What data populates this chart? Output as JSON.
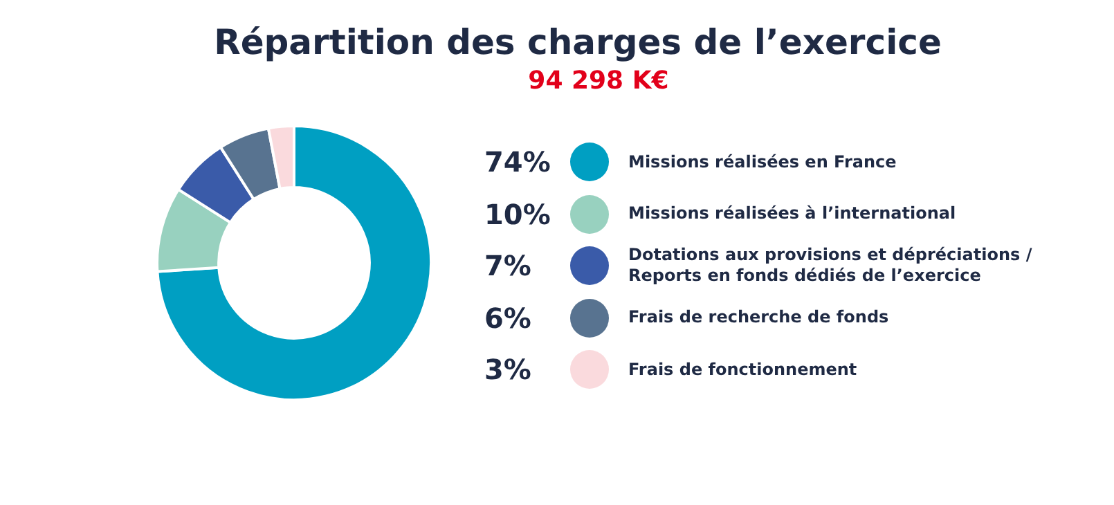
{
  "chart_data": {
    "type": "donut",
    "title": "Répartition des charges de l’exercice",
    "subtitle": "94 298 K€",
    "categories": [
      "Missions réalisées en France",
      "Missions réalisées à l’international",
      "Dotations aux provisions et dépréciations / Reports en fonds dédiés de l’exercice",
      "Frais de recherche de fonds",
      "Frais de fonctionnement"
    ],
    "values": [
      74,
      10,
      7,
      6,
      3
    ],
    "value_labels": [
      "74%",
      "10%",
      "7%",
      "6%",
      "3%"
    ],
    "colors": [
      "#009fc2",
      "#98d1bf",
      "#3a5ba9",
      "#587390",
      "#fadadd"
    ],
    "legend": "right"
  }
}
